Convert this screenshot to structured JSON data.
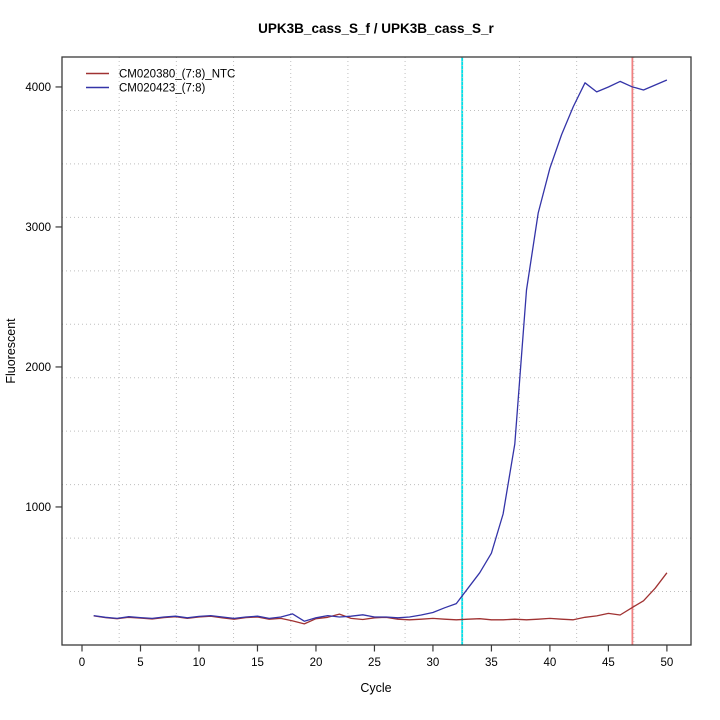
{
  "chart_data": {
    "type": "line",
    "title": "UPK3B_cass_S_f / UPK3B_cass_S_r",
    "xlabel": "Cycle",
    "ylabel": "Fluorescent",
    "xlim": [
      -1.71,
      52.06
    ],
    "ylim": [
      14,
      4214
    ],
    "x_ticks": [
      0,
      5,
      10,
      15,
      20,
      25,
      30,
      35,
      40,
      45,
      50
    ],
    "y_ticks": [
      1000,
      2000,
      3000,
      4000
    ],
    "grid": {
      "nx": 11,
      "ny": 11,
      "style": "dotted",
      "color": "#bfbfbf",
      "legend_position": "top-left"
    },
    "x": [
      1,
      2,
      3,
      4,
      5,
      6,
      7,
      8,
      9,
      10,
      11,
      12,
      13,
      14,
      15,
      16,
      17,
      18,
      19,
      20,
      21,
      22,
      23,
      24,
      25,
      26,
      27,
      28,
      29,
      30,
      31,
      32,
      33,
      34,
      35,
      36,
      37,
      38,
      39,
      40,
      41,
      42,
      43,
      44,
      45,
      46,
      47,
      48,
      49,
      50
    ],
    "series": [
      {
        "name": "CM020380_(7:8)_NTC",
        "color": "#a03232",
        "values": [
          222,
          210,
          202,
          212,
          206,
          200,
          210,
          216,
          204,
          214,
          220,
          208,
          198,
          210,
          214,
          198,
          204,
          186,
          165,
          202,
          212,
          235,
          204,
          196,
          208,
          212,
          198,
          194,
          198,
          204,
          198,
          194,
          198,
          202,
          194,
          194,
          198,
          194,
          198,
          204,
          198,
          194,
          212,
          222,
          240,
          228,
          280,
          330,
          420,
          530
        ]
      },
      {
        "name": "CM020423_(7:8)",
        "color": "#3434a8",
        "values": [
          224,
          212,
          204,
          216,
          210,
          204,
          214,
          220,
          208,
          218,
          224,
          214,
          204,
          214,
          220,
          204,
          214,
          236,
          184,
          208,
          224,
          214,
          220,
          230,
          214,
          214,
          208,
          214,
          228,
          246,
          280,
          310,
          420,
          530,
          670,
          950,
          1450,
          2550,
          3100,
          3420,
          3660,
          3860,
          4030,
          3965,
          4000,
          4040,
          4002,
          3978,
          4014,
          4050
        ]
      }
    ],
    "vlines": [
      {
        "x": 32.5,
        "color": "#00e0e8",
        "name": "cyan-threshold-line"
      },
      {
        "x": 47.05,
        "color": "#f08080",
        "name": "red-threshold-line"
      }
    ],
    "axis_color": "#3a3a3a"
  }
}
